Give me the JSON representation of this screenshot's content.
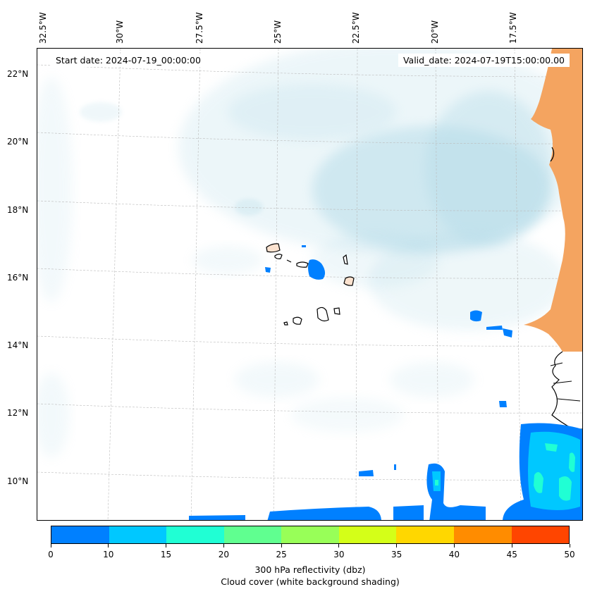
{
  "map": {
    "start_date": "Start date: 2024-07-19_00:00:00",
    "valid_date": "Valid_date: 2024-07-19T15:00:00.00",
    "lon_labels": [
      "32.5°W",
      "30°W",
      "27.5°W",
      "25°W",
      "22.5°W",
      "20°W",
      "17.5°W"
    ],
    "lat_labels": [
      "22°N",
      "20°N",
      "18°N",
      "16°N",
      "14°N",
      "12°N",
      "10°N"
    ],
    "colors": {
      "land": "#f4a460",
      "cloud": "#add8e6",
      "coast": "#000000",
      "grid": "#bbbbbb"
    }
  },
  "colorbar": {
    "ticks": [
      "0",
      "10",
      "15",
      "20",
      "25",
      "30",
      "35",
      "40",
      "45",
      "50"
    ],
    "colors": [
      "#0080ff",
      "#00c8ff",
      "#20ffd4",
      "#60ff90",
      "#98ff58",
      "#d4ff18",
      "#ffd700",
      "#ff8c00",
      "#ff4500"
    ],
    "label": "300 hPa reflectivity (dbz)",
    "sublabel": "Cloud cover (white background shading)"
  }
}
